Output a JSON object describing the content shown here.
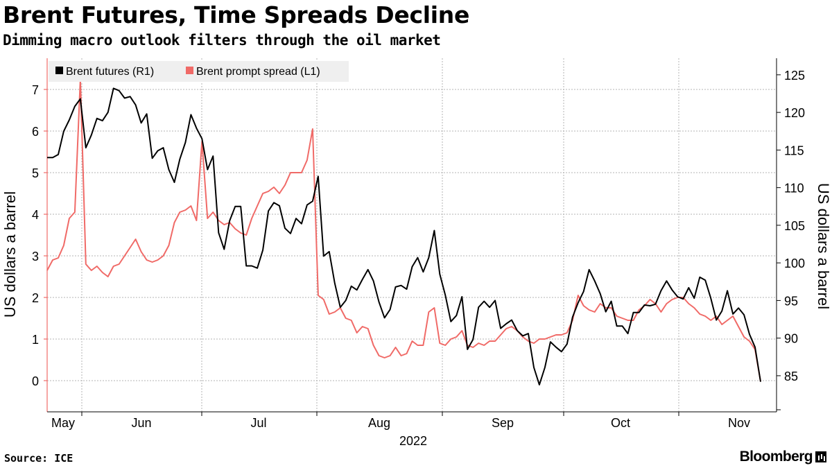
{
  "header": {
    "title": "Brent Futures, Time Spreads Decline",
    "subtitle": "Dimming macro outlook filters through the oil market"
  },
  "footer": {
    "source": "Source: ICE",
    "brand": "Bloomberg"
  },
  "colors": {
    "futures": "#000000",
    "spread": "#f06a67",
    "grid": "#b3b3b3",
    "legend_bg": "#efefef"
  },
  "chart_data": {
    "type": "line",
    "x_unit": "trading day",
    "x_start": "2022-05-02",
    "x_year_label": "2022",
    "month_labels": [
      "May",
      "Jun",
      "Jul",
      "Aug",
      "Sep",
      "Oct",
      "Nov"
    ],
    "left_axis": {
      "label": "US dollars a barrel",
      "ylim": [
        -0.75,
        7.75
      ],
      "ticks": [
        0,
        1,
        2,
        3,
        4,
        5,
        6,
        7
      ]
    },
    "right_axis": {
      "label": "US dollars a barrel",
      "ylim": [
        80.2,
        127.2
      ],
      "ticks": [
        85,
        90,
        95,
        100,
        105,
        110,
        115,
        120,
        125
      ]
    },
    "grid": true,
    "legend_position": "top-left",
    "series": [
      {
        "name": "Brent futures (R1)",
        "axis": "right",
        "color": "#000000",
        "values": [
          114,
          114,
          114.4,
          117.5,
          119,
          120.8,
          121.8,
          115.3,
          117,
          119.2,
          118.9,
          120,
          123.2,
          122.9,
          121.9,
          122.1,
          121,
          118.6,
          119.8,
          113.9,
          114.9,
          115.3,
          112.4,
          110.7,
          113.8,
          116,
          119.7,
          117.9,
          116.5,
          112.4,
          114.2,
          104,
          101.8,
          105.6,
          107.5,
          107.5,
          99.6,
          99.6,
          99.3,
          101.7,
          106.9,
          108,
          107.6,
          104.6,
          103.9,
          105.9,
          105.2,
          107.7,
          108.2,
          111.5,
          100.9,
          101.5,
          97.3,
          94.1,
          95,
          96.9,
          96.4,
          97.8,
          99.1,
          97.6,
          94.8,
          92.7,
          93.8,
          96.8,
          97,
          96.5,
          99.5,
          100.7,
          98.8,
          100.7,
          104.3,
          98.5,
          95.7,
          92.2,
          93,
          95.5,
          88.5,
          89.8,
          94.1,
          94.9,
          94.1,
          95,
          91.3,
          91.9,
          92.4,
          91,
          90.3,
          90.6,
          86.1,
          83.8,
          86.1,
          89.5,
          88.8,
          88.2,
          89.2,
          92.8,
          94.7,
          96.2,
          99.1,
          97.6,
          95.9,
          93.5,
          94.9,
          91.6,
          91.6,
          90.6,
          93.4,
          93.4,
          94.4,
          94.3,
          94.5,
          96.3,
          97.6,
          96.4,
          95.5,
          95.2,
          96.7,
          95.3,
          98.1,
          97.7,
          95.3,
          92.4,
          93.6,
          96.3,
          93.2,
          94,
          93.1,
          90.5,
          88.8,
          84.2
        ]
      },
      {
        "name": "Brent prompt spread (L1)",
        "axis": "left",
        "color": "#f06a67",
        "values": [
          2.65,
          2.9,
          2.95,
          3.25,
          3.9,
          4.05,
          7.25,
          2.8,
          2.65,
          2.75,
          2.6,
          2.5,
          2.75,
          2.8,
          3,
          3.2,
          3.4,
          3.1,
          2.9,
          2.85,
          2.9,
          3,
          3.25,
          3.8,
          4.05,
          4.1,
          4.2,
          3.85,
          5.75,
          3.9,
          4.05,
          3.85,
          3.75,
          3.8,
          3.65,
          3.55,
          3.5,
          3.9,
          4.2,
          4.5,
          4.55,
          4.65,
          4.5,
          4.7,
          5,
          5,
          5,
          5.3,
          6.05,
          2.05,
          1.95,
          1.6,
          1.65,
          1.75,
          1.5,
          1.45,
          1.15,
          1.3,
          1.25,
          0.85,
          0.6,
          0.55,
          0.6,
          0.8,
          0.6,
          0.65,
          0.95,
          0.85,
          0.85,
          1.65,
          1.75,
          0.9,
          0.85,
          1,
          1.05,
          1.2,
          0.85,
          0.8,
          0.9,
          0.85,
          0.95,
          0.95,
          1.1,
          1.25,
          1.3,
          1.2,
          1.05,
          0.95,
          0.9,
          1,
          1,
          1.05,
          1.1,
          1.1,
          1.15,
          1.45,
          2.05,
          1.8,
          1.7,
          1.65,
          1.85,
          1.75,
          1.75,
          1.55,
          1.5,
          1.45,
          1.45,
          1.7,
          1.8,
          1.95,
          1.85,
          1.65,
          1.85,
          1.95,
          2,
          2,
          1.85,
          1.75,
          1.6,
          1.55,
          1.45,
          1.55,
          1.35,
          1.45,
          1.55,
          1.3,
          1.05,
          0.95,
          0.75,
          -0.02
        ]
      }
    ]
  }
}
